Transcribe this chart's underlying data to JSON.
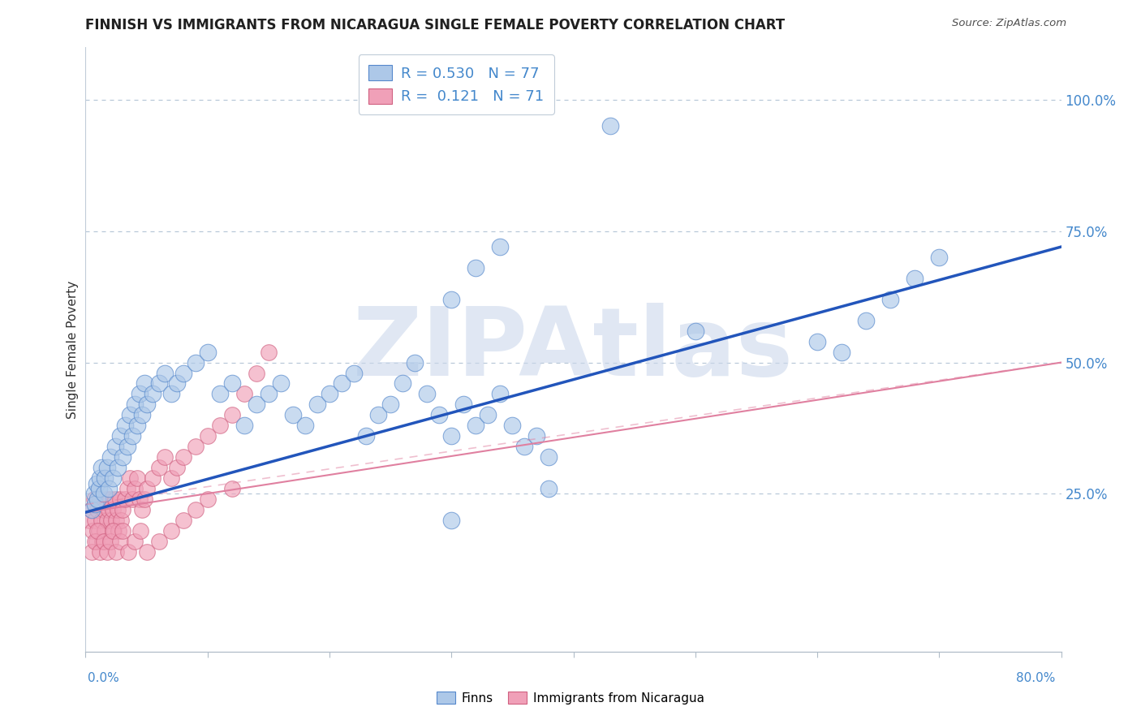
{
  "title": "FINNISH VS IMMIGRANTS FROM NICARAGUA SINGLE FEMALE POVERTY CORRELATION CHART",
  "source": "Source: ZipAtlas.com",
  "ylabel": "Single Female Poverty",
  "xlim": [
    0.0,
    0.8
  ],
  "ylim": [
    -0.05,
    1.1
  ],
  "finns_color_fill": "#adc8e8",
  "finns_color_edge": "#5588cc",
  "nic_color_fill": "#f0a0b8",
  "nic_color_edge": "#d06080",
  "trend_blue_color": "#2255bb",
  "trend_pink_color": "#e080a0",
  "watermark_text": "ZIPAtlas",
  "watermark_color": "#ccd8ec",
  "R_finns": "0.530",
  "N_finns": "77",
  "R_nic": "0.121",
  "N_nic": "71",
  "finns_trend_x0": 0.0,
  "finns_trend_y0": 0.215,
  "finns_trend_x1": 0.8,
  "finns_trend_y1": 0.72,
  "nic_trend_x0": 0.0,
  "nic_trend_y0": 0.215,
  "nic_trend_x1": 0.8,
  "nic_trend_y1": 0.5,
  "finns_x": [
    0.005,
    0.007,
    0.008,
    0.009,
    0.01,
    0.011,
    0.012,
    0.013,
    0.015,
    0.016,
    0.018,
    0.019,
    0.02,
    0.022,
    0.024,
    0.026,
    0.028,
    0.03,
    0.032,
    0.034,
    0.036,
    0.038,
    0.04,
    0.042,
    0.044,
    0.046,
    0.048,
    0.05,
    0.055,
    0.06,
    0.065,
    0.07,
    0.075,
    0.08,
    0.09,
    0.1,
    0.11,
    0.12,
    0.13,
    0.14,
    0.15,
    0.16,
    0.17,
    0.18,
    0.19,
    0.2,
    0.21,
    0.22,
    0.23,
    0.24,
    0.25,
    0.26,
    0.27,
    0.28,
    0.29,
    0.3,
    0.31,
    0.32,
    0.33,
    0.34,
    0.35,
    0.36,
    0.37,
    0.38,
    0.3,
    0.32,
    0.34,
    0.5,
    0.6,
    0.62,
    0.64,
    0.66,
    0.68,
    0.7,
    0.3,
    0.38,
    0.43
  ],
  "finns_y": [
    0.22,
    0.25,
    0.23,
    0.27,
    0.24,
    0.26,
    0.28,
    0.3,
    0.25,
    0.28,
    0.3,
    0.26,
    0.32,
    0.28,
    0.34,
    0.3,
    0.36,
    0.32,
    0.38,
    0.34,
    0.4,
    0.36,
    0.42,
    0.38,
    0.44,
    0.4,
    0.46,
    0.42,
    0.44,
    0.46,
    0.48,
    0.44,
    0.46,
    0.48,
    0.5,
    0.52,
    0.44,
    0.46,
    0.38,
    0.42,
    0.44,
    0.46,
    0.4,
    0.38,
    0.42,
    0.44,
    0.46,
    0.48,
    0.36,
    0.4,
    0.42,
    0.46,
    0.5,
    0.44,
    0.4,
    0.36,
    0.42,
    0.38,
    0.4,
    0.44,
    0.38,
    0.34,
    0.36,
    0.32,
    0.62,
    0.68,
    0.72,
    0.56,
    0.54,
    0.52,
    0.58,
    0.62,
    0.66,
    0.7,
    0.2,
    0.26,
    0.95
  ],
  "nic_x": [
    0.003,
    0.005,
    0.006,
    0.007,
    0.008,
    0.009,
    0.01,
    0.011,
    0.012,
    0.013,
    0.014,
    0.015,
    0.016,
    0.017,
    0.018,
    0.019,
    0.02,
    0.021,
    0.022,
    0.023,
    0.024,
    0.025,
    0.026,
    0.027,
    0.028,
    0.029,
    0.03,
    0.032,
    0.034,
    0.036,
    0.038,
    0.04,
    0.042,
    0.044,
    0.046,
    0.048,
    0.05,
    0.055,
    0.06,
    0.065,
    0.07,
    0.075,
    0.08,
    0.09,
    0.1,
    0.11,
    0.12,
    0.13,
    0.14,
    0.15,
    0.005,
    0.008,
    0.01,
    0.012,
    0.015,
    0.018,
    0.02,
    0.022,
    0.025,
    0.028,
    0.03,
    0.035,
    0.04,
    0.045,
    0.05,
    0.06,
    0.07,
    0.08,
    0.09,
    0.1,
    0.12
  ],
  "nic_y": [
    0.2,
    0.22,
    0.18,
    0.24,
    0.2,
    0.16,
    0.22,
    0.18,
    0.24,
    0.2,
    0.16,
    0.22,
    0.18,
    0.24,
    0.2,
    0.22,
    0.24,
    0.2,
    0.22,
    0.18,
    0.24,
    0.2,
    0.22,
    0.18,
    0.24,
    0.2,
    0.22,
    0.24,
    0.26,
    0.28,
    0.24,
    0.26,
    0.28,
    0.24,
    0.22,
    0.24,
    0.26,
    0.28,
    0.3,
    0.32,
    0.28,
    0.3,
    0.32,
    0.34,
    0.36,
    0.38,
    0.4,
    0.44,
    0.48,
    0.52,
    0.14,
    0.16,
    0.18,
    0.14,
    0.16,
    0.14,
    0.16,
    0.18,
    0.14,
    0.16,
    0.18,
    0.14,
    0.16,
    0.18,
    0.14,
    0.16,
    0.18,
    0.2,
    0.22,
    0.24,
    0.26
  ]
}
